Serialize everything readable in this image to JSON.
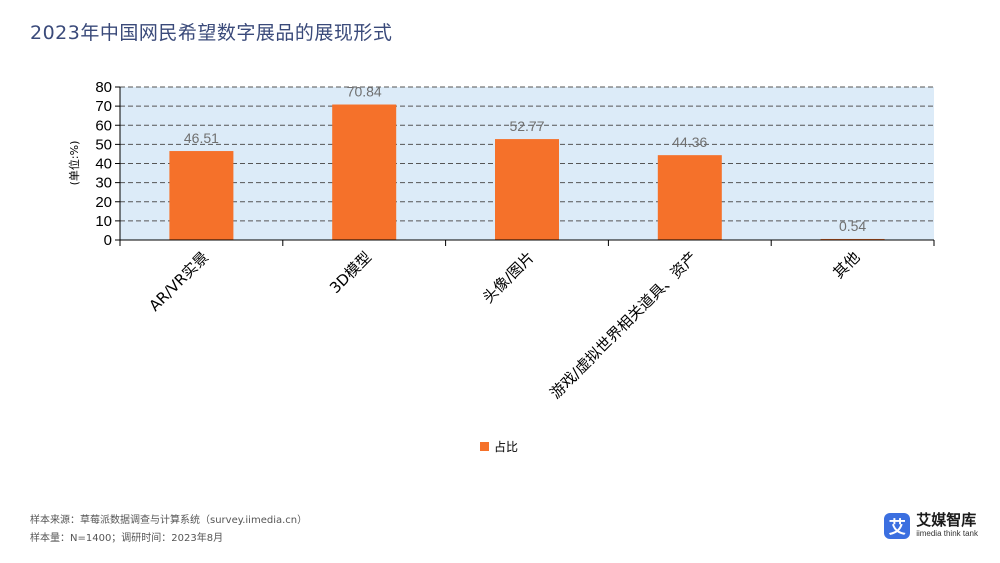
{
  "title": "2023年中国网民希望数字展品的展现形式",
  "chart_data": {
    "type": "bar",
    "categories": [
      "AR/VR实景",
      "3D模型",
      "头像/图片",
      "游戏/虚拟世界相关道具、资产",
      "其他"
    ],
    "series": [
      {
        "name": "占比",
        "values": [
          46.51,
          70.84,
          52.77,
          44.36,
          0.54
        ],
        "color": "#f5712a"
      }
    ],
    "ylabel": "(单位:%)",
    "ylim": [
      0,
      80
    ],
    "yticks": [
      0,
      10,
      20,
      30,
      40,
      50,
      60,
      70,
      80
    ],
    "grid": true,
    "legend": "bottom-center",
    "plot_background": "#dcebf8"
  },
  "footer": {
    "line1": "样本来源：草莓派数据调查与计算系统（survey.iimedia.cn）",
    "line2": "样本量：N=1400；调研时间：2023年8月"
  },
  "brand": {
    "icon_glyph": "艾",
    "name": "艾媒智库",
    "sub": "iimedia think tank",
    "color": "#3b6fe0"
  }
}
